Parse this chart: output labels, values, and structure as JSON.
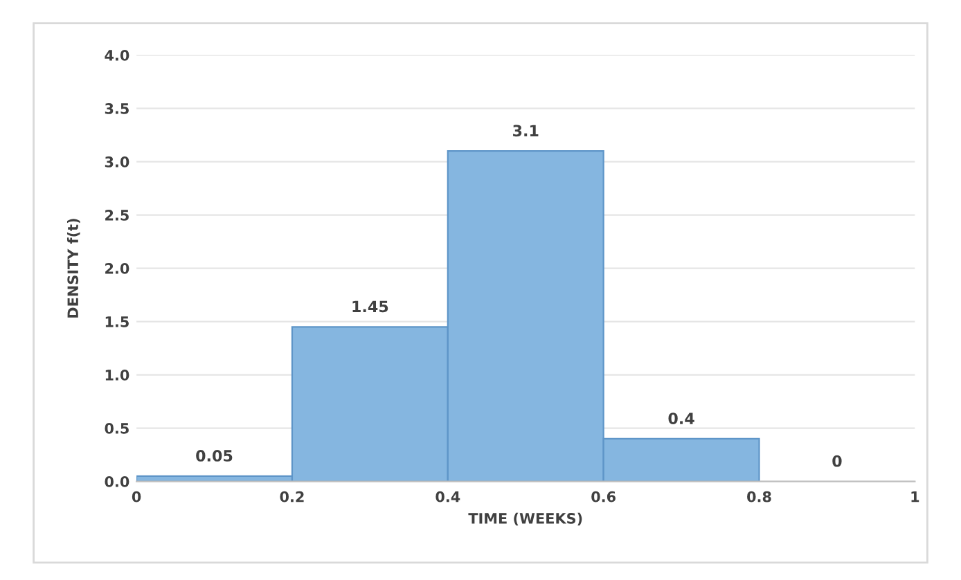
{
  "chart_data": {
    "type": "histogram",
    "xlabel": "TIME (WEEKS)",
    "ylabel": "DENSITY f(t)",
    "bins": [
      0,
      0.2,
      0.4,
      0.6,
      0.8,
      1
    ],
    "values": [
      0.05,
      1.45,
      3.1,
      0.4,
      0
    ],
    "color": "#85b6e0",
    "xlim": [
      0,
      1
    ],
    "xticks": [
      0,
      0.2,
      0.4,
      0.6,
      0.8,
      1
    ],
    "ylim": [
      0,
      4
    ],
    "yticks": [
      {
        "value": 0,
        "label": "0.0"
      },
      {
        "value": 0.5,
        "label": "0.5"
      },
      {
        "value": 1,
        "label": "1.0"
      },
      {
        "value": 1.5,
        "label": "1.5"
      },
      {
        "value": 2,
        "label": "2.0"
      },
      {
        "value": 2.5,
        "label": "2.5"
      },
      {
        "value": 3,
        "label": "3.0"
      },
      {
        "value": 3.5,
        "label": "3.5"
      },
      {
        "value": 4,
        "label": "4.0"
      }
    ],
    "grid": "y",
    "data_labels": true
  }
}
